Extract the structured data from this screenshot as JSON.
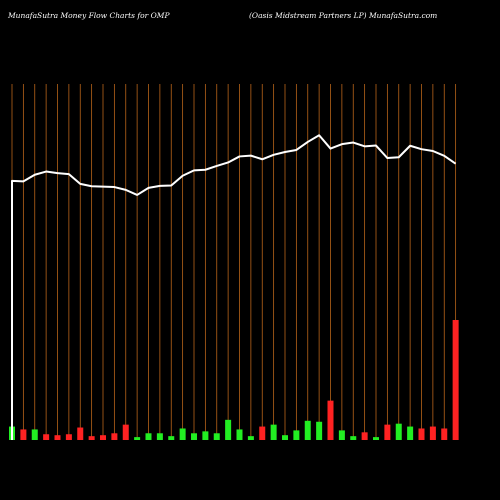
{
  "header": {
    "left": "MunafaSutra  Money Flow  Charts for OMP",
    "right": "(Oasis Midstream Partners LP) MunafaSutra.com"
  },
  "colors": {
    "background": "#000000",
    "grid": "#b8641a",
    "price_line": "#ffffff",
    "bar_up": "#22ee22",
    "bar_down": "#ff2222"
  },
  "chart_data": {
    "type": "bar",
    "series": [
      {
        "values": [
          14,
          11,
          11,
          6,
          5,
          6,
          13,
          4,
          5,
          7,
          16,
          3,
          7,
          7,
          4,
          12,
          7,
          9,
          7,
          21,
          11,
          4,
          14,
          16,
          5,
          10,
          20,
          19,
          41,
          10,
          4,
          8,
          3,
          16,
          17,
          14,
          12,
          14,
          12,
          125
        ]
      },
      {
        "values": [
          85.5,
          85.2,
          88.5,
          90.1,
          89.3,
          88.8,
          84.0,
          82.8,
          82.6,
          82.4,
          81.0,
          78.5,
          82.0,
          83.0,
          83.2,
          88.0,
          90.7,
          91.0,
          92.9,
          94.6,
          97.6,
          98.0,
          96.2,
          98.4,
          99.8,
          100.8,
          104.8,
          108.1,
          101.5,
          103.7,
          104.5,
          102.6,
          103.0,
          96.8,
          97.2,
          102.9,
          101.2,
          100.3,
          97.9,
          94.0
        ]
      }
    ],
    "bar_colors": [
      "up",
      "down",
      "up",
      "down",
      "down",
      "down",
      "down",
      "down",
      "down",
      "down",
      "down",
      "up",
      "up",
      "up",
      "up",
      "up",
      "up",
      "up",
      "up",
      "up",
      "up",
      "up",
      "down",
      "up",
      "up",
      "up",
      "up",
      "up",
      "down",
      "up",
      "up",
      "down",
      "up",
      "down",
      "up",
      "up",
      "down",
      "down",
      "down",
      "down"
    ],
    "grid": {
      "vertical_lines": true
    }
  }
}
